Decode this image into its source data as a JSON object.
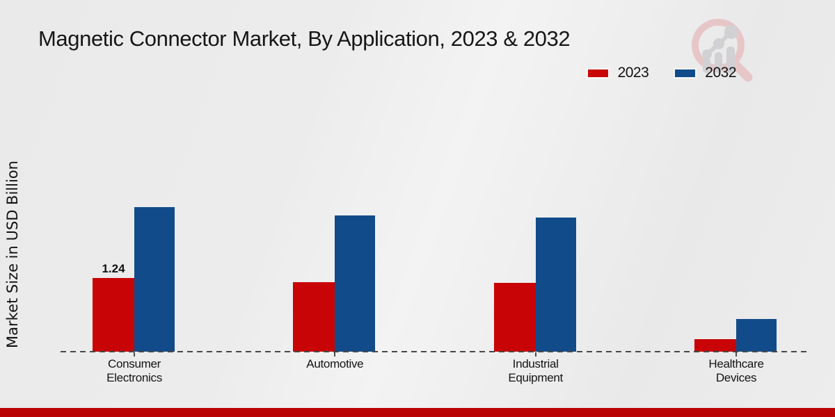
{
  "chart_data": {
    "type": "bar",
    "title": "Magnetic Connector Market, By Application, 2023 & 2032",
    "ylabel": "Market Size in USD Billion",
    "xlabel": "",
    "categories": [
      "Consumer Electronics",
      "Automotive",
      "Industrial Equipment",
      "Healthcare Devices"
    ],
    "series": [
      {
        "name": "2023",
        "color": "#c90406",
        "values": [
          1.24,
          1.17,
          1.16,
          0.21
        ]
      },
      {
        "name": "2032",
        "color": "#114b8a",
        "values": [
          2.43,
          2.29,
          2.26,
          0.55
        ]
      }
    ],
    "value_labels": [
      {
        "series_index": 0,
        "category_index": 0,
        "text": "1.24"
      }
    ],
    "ylim": [
      0,
      2.6
    ],
    "grid": false,
    "legend_position": "top-right",
    "baseline_style": "dashed"
  },
  "branding": {
    "logo_icon": "magnifier-bar-chart-watermark",
    "footer_color": "#b90304",
    "watermark_ring_color": "#e7c6c8",
    "watermark_gray_color": "#d1d1d4"
  }
}
